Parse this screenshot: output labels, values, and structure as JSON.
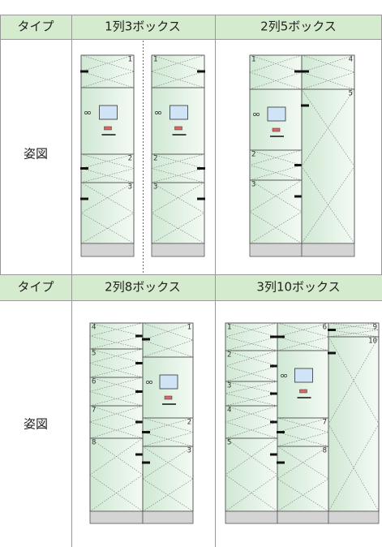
{
  "table": {
    "sections": [
      {
        "header": [
          "タイプ",
          "1列3ボックス",
          "2列5ボックス"
        ],
        "figure_label": "姿図",
        "diagrams": [
          {
            "box_numbers": [
              "1",
              "2",
              "3",
              "1",
              "2",
              "3"
            ]
          },
          {
            "box_numbers": [
              "1",
              "2",
              "3",
              "4",
              "5"
            ]
          }
        ]
      },
      {
        "header": [
          "タイプ",
          "2列8ボックス",
          "3列10ボックス"
        ],
        "figure_label": "姿図",
        "diagrams": [
          {
            "box_numbers": [
              "4",
              "5",
              "6",
              "7",
              "8",
              "1",
              "2",
              "3"
            ]
          },
          {
            "box_numbers": [
              "1",
              "2",
              "3",
              "4",
              "5",
              "6",
              "7",
              "8",
              "9",
              "10"
            ]
          }
        ]
      }
    ]
  }
}
